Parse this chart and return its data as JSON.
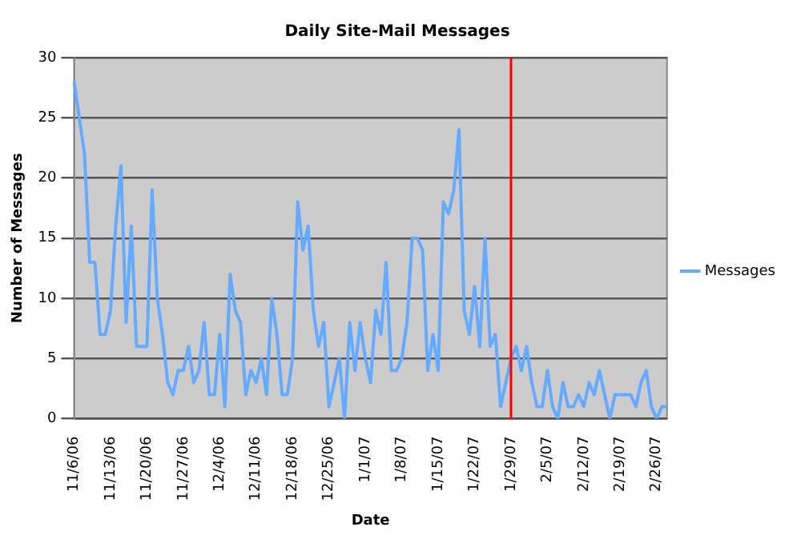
{
  "chart_data": {
    "type": "line",
    "title": "Daily Site-Mail Messages",
    "xlabel": "Date",
    "ylabel": "Number of Messages",
    "categories": [
      "11/6/06",
      null,
      null,
      null,
      null,
      null,
      null,
      "11/13/06",
      null,
      null,
      null,
      null,
      null,
      null,
      "11/20/06",
      null,
      null,
      null,
      null,
      null,
      null,
      "11/27/06",
      null,
      null,
      null,
      null,
      null,
      null,
      "12/4/06",
      null,
      null,
      null,
      null,
      null,
      null,
      "12/11/06",
      null,
      null,
      null,
      null,
      null,
      null,
      "12/18/06",
      null,
      null,
      null,
      null,
      null,
      null,
      "12/25/06",
      null,
      null,
      null,
      null,
      null,
      null,
      "1/1/07",
      null,
      null,
      null,
      null,
      null,
      null,
      "1/8/07",
      null,
      null,
      null,
      null,
      null,
      null,
      "1/15/07",
      null,
      null,
      null,
      null,
      null,
      null,
      "1/22/07",
      null,
      null,
      null,
      null,
      null,
      null,
      "1/29/07",
      null,
      null,
      null,
      null,
      null,
      null,
      "2/5/07",
      null,
      null,
      null,
      null,
      null,
      null,
      "2/12/07",
      null,
      null,
      null,
      null,
      null,
      null,
      "2/19/07",
      null,
      null,
      null,
      null,
      null,
      null,
      "2/26/07",
      null,
      null
    ],
    "series": [
      {
        "name": "Messages",
        "color": "#66aaff",
        "values": [
          28,
          25,
          22,
          13,
          13,
          7,
          7,
          9,
          16,
          21,
          8,
          16,
          6,
          6,
          6,
          19,
          10,
          7,
          3,
          2,
          4,
          4,
          6,
          3,
          4,
          8,
          2,
          2,
          7,
          1,
          12,
          9,
          8,
          2,
          4,
          3,
          5,
          2,
          10,
          7,
          2,
          2,
          5,
          18,
          14,
          16,
          9,
          6,
          8,
          1,
          3,
          5,
          0,
          8,
          4,
          8,
          5,
          3,
          9,
          7,
          13,
          4,
          4,
          5,
          8,
          15,
          15,
          14,
          4,
          7,
          4,
          18,
          17,
          19,
          24,
          9,
          7,
          11,
          6,
          15,
          6,
          7,
          1,
          3,
          5,
          6,
          4,
          6,
          3,
          1,
          1,
          4,
          1,
          0,
          3,
          1,
          1,
          2,
          1,
          3,
          2,
          4,
          2,
          0,
          2,
          2,
          2,
          2,
          1,
          3,
          4,
          1,
          0,
          1,
          1
        ]
      }
    ],
    "ylim": [
      0,
      30
    ],
    "yticks": [
      0,
      5,
      10,
      15,
      20,
      25,
      30
    ],
    "grid": "y",
    "legend": "right",
    "marker": "none",
    "line_style": "solid",
    "ref_lines": [
      {
        "axis": "x",
        "value": "1/29/07",
        "color": "#ff0000"
      }
    ]
  }
}
